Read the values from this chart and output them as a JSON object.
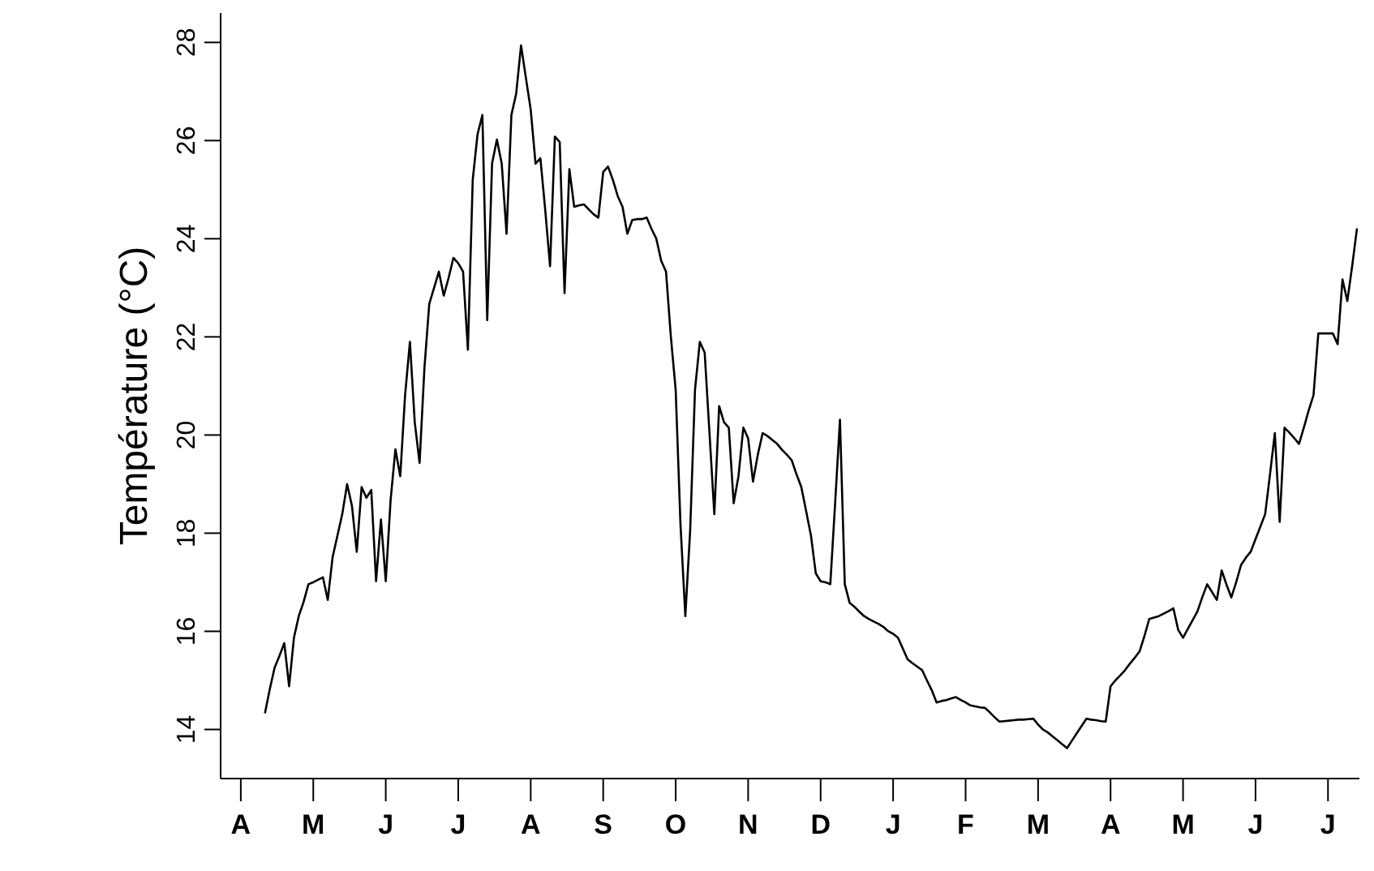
{
  "chart_data": {
    "type": "line",
    "ylabel": "Température (°C)",
    "categories": [
      "A",
      null,
      null,
      null,
      null,
      null,
      null,
      null,
      null,
      null,
      null,
      null,
      null,
      null,
      null,
      "M",
      null,
      null,
      null,
      null,
      null,
      null,
      null,
      null,
      null,
      null,
      null,
      null,
      null,
      null,
      "J",
      null,
      null,
      null,
      null,
      null,
      null,
      null,
      null,
      null,
      null,
      null,
      null,
      null,
      null,
      "J",
      null,
      null,
      null,
      null,
      null,
      null,
      null,
      null,
      null,
      null,
      null,
      null,
      null,
      null,
      "A",
      null,
      null,
      null,
      null,
      null,
      null,
      null,
      null,
      null,
      null,
      null,
      null,
      null,
      null,
      "S",
      null,
      null,
      null,
      null,
      null,
      null,
      null,
      null,
      null,
      null,
      null,
      null,
      null,
      null,
      "O",
      null,
      null,
      null,
      null,
      null,
      null,
      null,
      null,
      null,
      null,
      null,
      null,
      null,
      null,
      "N",
      null,
      null,
      null,
      null,
      null,
      null,
      null,
      null,
      null,
      null,
      null,
      null,
      null,
      null,
      "D",
      null,
      null,
      null,
      null,
      null,
      null,
      null,
      null,
      null,
      null,
      null,
      null,
      null,
      null,
      "J",
      null,
      null,
      null,
      null,
      null,
      null,
      null,
      null,
      null,
      null,
      null,
      null,
      null,
      null,
      "F",
      null,
      null,
      null,
      null,
      null,
      null,
      null,
      null,
      null,
      null,
      null,
      null,
      null,
      null,
      "M",
      null,
      null,
      null,
      null,
      null,
      null,
      null,
      null,
      null,
      null,
      null,
      null,
      null,
      null,
      "A",
      null,
      null,
      null,
      null,
      null,
      null,
      null,
      null,
      null,
      null,
      null,
      null,
      null,
      null,
      "M",
      null,
      null,
      null,
      null,
      null,
      null,
      null,
      null,
      null,
      null,
      null,
      null,
      null,
      null,
      "J",
      null,
      null,
      null,
      null,
      null,
      null,
      null,
      null,
      null,
      null,
      null,
      null,
      null,
      null,
      "J",
      null,
      null,
      null,
      null,
      null,
      null
    ],
    "ylim": [
      13,
      28.6
    ],
    "yticks": [
      14,
      16,
      18,
      20,
      22,
      24,
      26,
      28
    ],
    "grid": false,
    "marker": "none",
    "line_style": "solid",
    "series": [
      {
        "color": "#000000",
        "values": [
          null,
          null,
          null,
          null,
          null,
          14.33,
          14.82,
          15.26,
          15.5,
          15.76,
          14.88,
          15.87,
          16.31,
          16.6,
          16.96,
          17.0,
          17.05,
          17.1,
          16.64,
          17.51,
          17.95,
          18.39,
          19.0,
          18.56,
          17.62,
          18.94,
          18.72,
          18.88,
          17.02,
          18.28,
          17.02,
          18.67,
          19.71,
          19.16,
          20.81,
          21.9,
          20.26,
          19.43,
          21.36,
          22.67,
          23.0,
          23.33,
          22.84,
          23.2,
          23.61,
          23.5,
          23.33,
          21.74,
          25.2,
          26.13,
          26.52,
          22.34,
          25.53,
          26.02,
          25.53,
          24.1,
          26.52,
          26.96,
          27.94,
          27.28,
          26.63,
          25.53,
          25.64,
          24.59,
          23.44,
          26.08,
          25.97,
          22.89,
          25.42,
          24.65,
          24.68,
          24.7,
          24.6,
          24.5,
          24.43,
          25.36,
          25.47,
          25.2,
          24.87,
          24.65,
          24.1,
          24.38,
          24.4,
          24.4,
          24.43,
          24.2,
          24.0,
          23.55,
          23.33,
          22.01,
          20.92,
          18.17,
          16.31,
          18.06,
          20.92,
          21.9,
          21.68,
          20.04,
          18.39,
          20.59,
          20.26,
          20.15,
          18.61,
          19.16,
          20.15,
          19.93,
          19.05,
          19.6,
          20.04,
          19.98,
          19.9,
          19.82,
          19.7,
          19.6,
          19.49,
          19.2,
          18.94,
          18.45,
          17.95,
          17.18,
          17.02,
          17.0,
          16.96,
          18.61,
          20.31,
          16.96,
          16.58,
          16.5,
          16.4,
          16.31,
          16.25,
          16.2,
          16.15,
          16.09,
          16.0,
          15.95,
          15.87,
          15.65,
          15.43,
          15.35,
          15.28,
          15.21,
          15.0,
          14.8,
          14.55,
          14.58,
          14.6,
          14.63,
          14.66,
          14.6,
          14.55,
          14.49,
          14.47,
          14.45,
          14.44,
          14.35,
          14.25,
          14.16,
          14.17,
          14.18,
          14.19,
          14.2,
          14.2,
          14.21,
          14.22,
          14.1,
          14.0,
          13.94,
          13.86,
          13.78,
          13.7,
          13.62,
          13.77,
          13.92,
          14.07,
          14.22,
          14.2,
          14.19,
          14.17,
          14.16,
          14.88,
          15.0,
          15.1,
          15.21,
          15.34,
          15.46,
          15.59,
          15.9,
          16.25,
          16.28,
          16.31,
          16.36,
          16.41,
          16.47,
          16.03,
          15.87,
          16.05,
          16.23,
          16.41,
          16.7,
          16.96,
          16.8,
          16.64,
          17.24,
          16.95,
          16.69,
          17.0,
          17.35,
          17.5,
          17.62,
          17.88,
          18.13,
          18.39,
          19.2,
          20.04,
          18.23,
          20.15,
          20.05,
          19.94,
          19.82,
          20.15,
          20.5,
          20.81,
          22.07,
          22.07,
          22.07,
          22.07,
          21.85,
          23.17,
          22.73,
          23.44,
          24.21
        ]
      }
    ]
  }
}
